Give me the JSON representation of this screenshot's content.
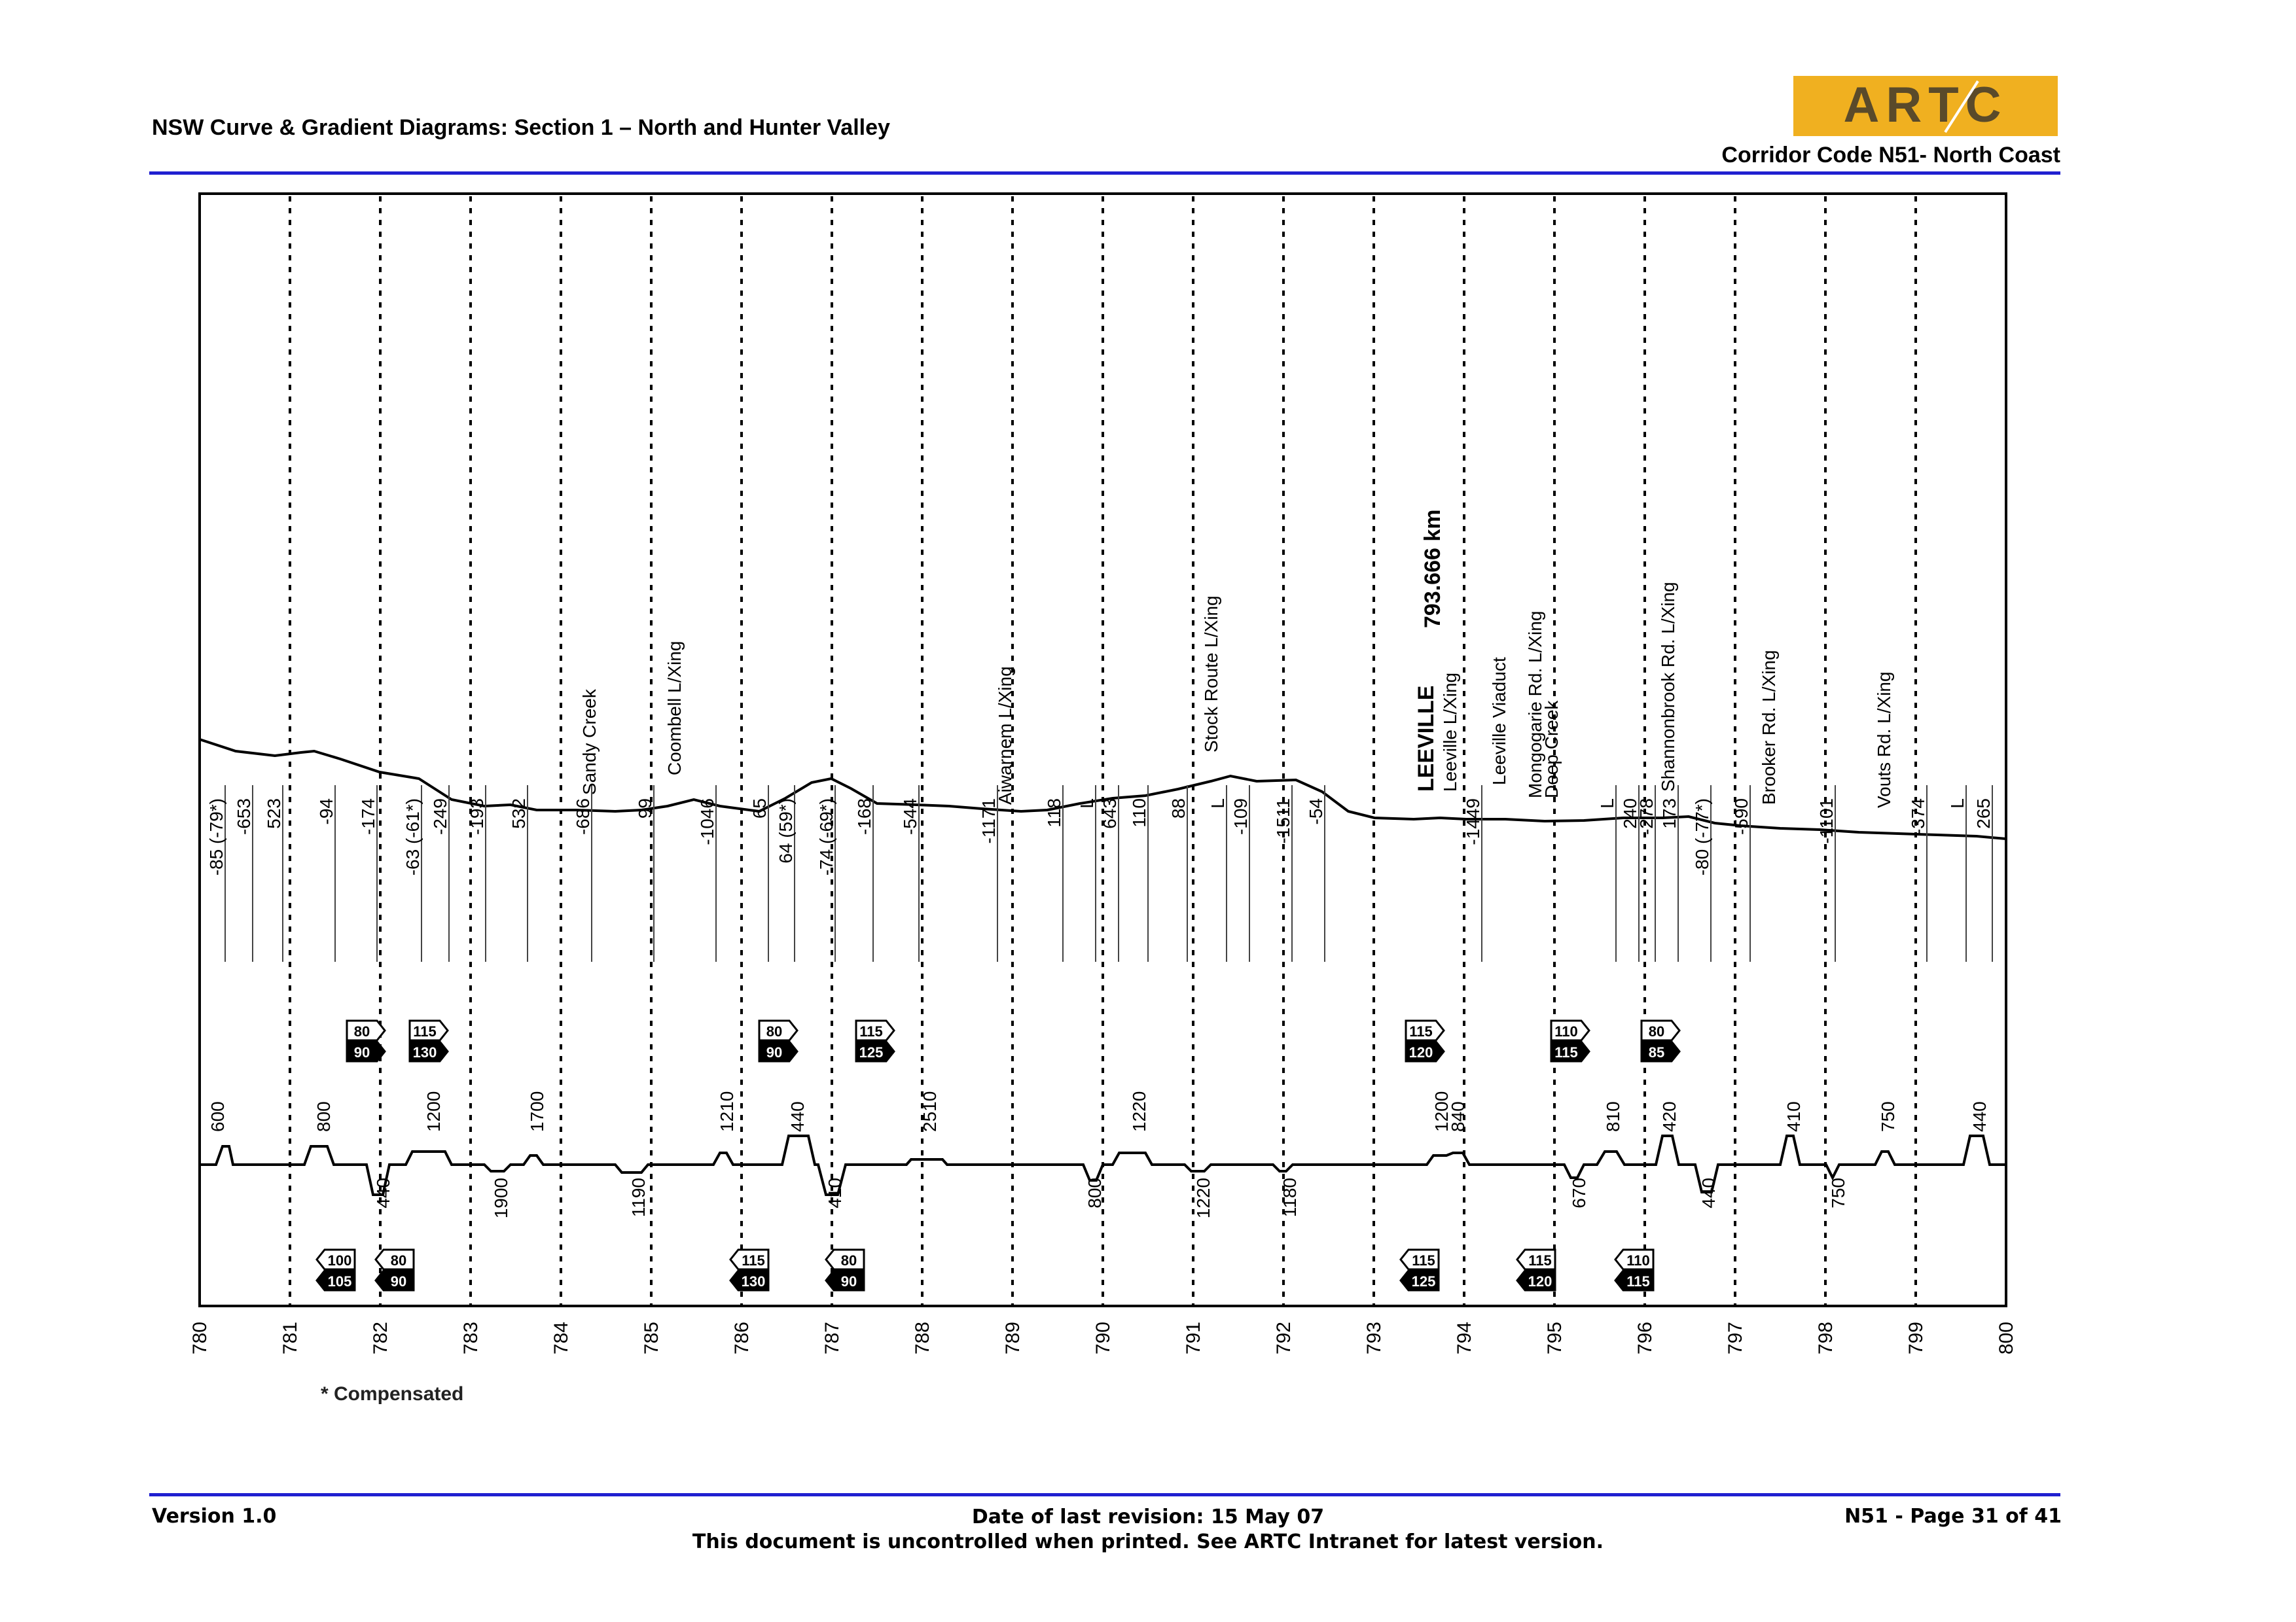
{
  "header": {
    "title": "NSW Curve & Gradient Diagrams: Section 1 – North and Hunter Valley",
    "corridor": "Corridor Code N51- North Coast",
    "logo_text": "ARTC"
  },
  "diagram": {
    "km_ticks": [
      "780",
      "781",
      "782",
      "783",
      "784",
      "785",
      "786",
      "787",
      "788",
      "789",
      "790",
      "791",
      "792",
      "793",
      "794",
      "795",
      "796",
      "797",
      "798",
      "799",
      "800"
    ],
    "location_names": [
      "Sandy Creek",
      "Coombell L/Xing",
      "Aiwarnem L/Xing",
      "Stock Route L/Xing",
      "LEEVILLE",
      "793.666 km",
      "Leeville L/Xing",
      "Leeville Viaduct",
      "Mongogarie Rd. L/Xing",
      "Deep Creek",
      "Shannonbrook Rd. L/Xing",
      "Brooker Rd. L/Xing",
      "Vouts Rd. L/Xing"
    ],
    "gradient_labels": [
      "-85 (-79*)",
      "-653",
      "523",
      "-94",
      "-174",
      "-63 (-61*)",
      "-249",
      "-193",
      "532",
      "-686",
      "99",
      "-1046",
      "65",
      "64 (59*)",
      "-74 (-69*)",
      "-168",
      "-544",
      "-1171",
      "118",
      "L",
      "643",
      "110",
      "88",
      "L",
      "-109",
      "-1511",
      "-54",
      "-1449",
      "L",
      "240",
      "-278",
      "173",
      "-80 (-77*)",
      "-590",
      "-1101",
      "-374",
      "L",
      "265"
    ],
    "speed_signs_upper": [
      {
        "top": "80",
        "bottom": "90"
      },
      {
        "top": "115",
        "bottom": "130"
      },
      {
        "top": "80",
        "bottom": "90"
      },
      {
        "top": "115",
        "bottom": "125"
      },
      {
        "top": "115",
        "bottom": "120"
      },
      {
        "top": "110",
        "bottom": "115"
      },
      {
        "top": "80",
        "bottom": "85"
      }
    ],
    "speed_signs_lower": [
      {
        "top": "100",
        "bottom": "105"
      },
      {
        "top": "80",
        "bottom": "90"
      },
      {
        "top": "115",
        "bottom": "130"
      },
      {
        "top": "80",
        "bottom": "90"
      },
      {
        "top": "115",
        "bottom": "125"
      },
      {
        "top": "115",
        "bottom": "120"
      },
      {
        "top": "110",
        "bottom": "115"
      }
    ],
    "curve_radii_upper": [
      "600",
      "800",
      "1200",
      "1700",
      "1210",
      "440",
      "2510",
      "1220",
      "1200",
      "840",
      "810",
      "420",
      "410",
      "750",
      "440"
    ],
    "curve_radii_lower": [
      "440",
      "1900",
      "1190",
      "410",
      "800",
      "1220",
      "1180",
      "670",
      "440",
      "750"
    ],
    "footnote": "* Compensated"
  },
  "footer": {
    "version": "Version 1.0",
    "revision": "Date of last revision: 15 May 07",
    "uncontrolled": "This document is uncontrolled when printed. See ARTC Intranet for latest version.",
    "page": "N51 - Page 31 of 41"
  },
  "colors": {
    "rule": "#2020d0",
    "logo_bg": "#f0b020",
    "logo_text": "#5a4a2a"
  }
}
